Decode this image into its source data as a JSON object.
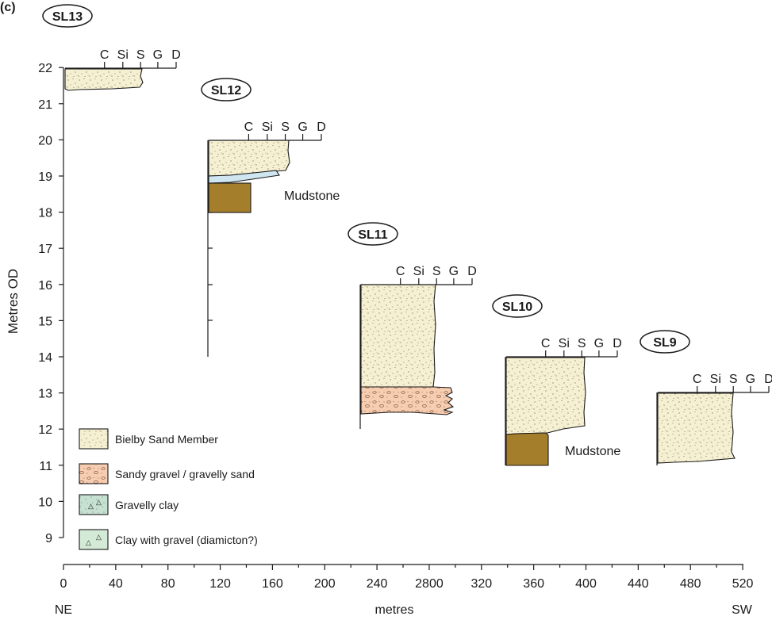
{
  "figure_label": "(c)",
  "y_axis": {
    "label": "Metres OD",
    "ticks": [
      "9",
      "10",
      "11",
      "12",
      "13",
      "14",
      "15",
      "16",
      "17",
      "18",
      "19",
      "20",
      "21",
      "22"
    ]
  },
  "x_axis": {
    "label": "metres",
    "left_label": "NE",
    "right_label": "SW",
    "ticks": [
      "0",
      "40",
      "80",
      "120",
      "160",
      "200",
      "240",
      "2800",
      "320",
      "360",
      "400",
      "440",
      "480",
      "520"
    ]
  },
  "grain_size_scale": [
    "C",
    "Si",
    "S",
    "G",
    "D"
  ],
  "logs": [
    {
      "id": "SL13",
      "top": 22
    },
    {
      "id": "SL12",
      "top": 20,
      "annotation": "Mudstone"
    },
    {
      "id": "SL11",
      "top": 16
    },
    {
      "id": "SL10",
      "top": 14,
      "annotation": "Mudstone"
    },
    {
      "id": "SL9",
      "top": 13
    }
  ],
  "legend": [
    {
      "label": "Bielby Sand Member",
      "pattern": "sand",
      "color": "#f6f0d3"
    },
    {
      "label": "Sandy gravel / gravelly sand",
      "pattern": "gravel",
      "color": "#f7cdb1"
    },
    {
      "label": "Gravelly clay",
      "pattern": "gravelly-clay",
      "color": "#c6e0d2"
    },
    {
      "label": "Clay with gravel (diamicton?)",
      "pattern": "diamicton",
      "color": "#d3ebd6"
    }
  ],
  "colors": {
    "sand": "#f6f0d3",
    "gravel": "#f7cdb1",
    "mudstone": "#a57e2b",
    "clay_band": "#cfe5f0",
    "gravelly_clay": "#c6e0d2",
    "diamicton": "#d3ebd6"
  }
}
